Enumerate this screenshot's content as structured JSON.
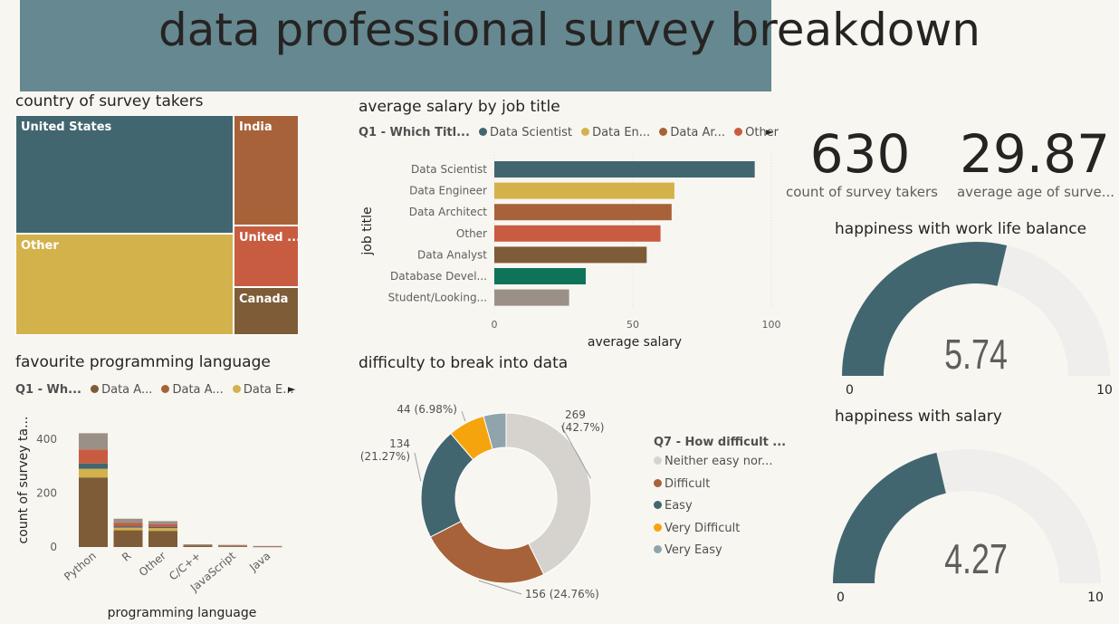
{
  "header": {
    "title": "data professional survey breakdown"
  },
  "treemap": {
    "title": "country of survey takers",
    "cells": [
      {
        "label": "United States",
        "color": "#426670"
      },
      {
        "label": "Other",
        "color": "#d3b24c"
      },
      {
        "label": "India",
        "color": "#a86239"
      },
      {
        "label": "United ...",
        "color": "#c75c41"
      },
      {
        "label": "Canada",
        "color": "#7e5c38"
      }
    ]
  },
  "salary_chart": {
    "title": "average salary by job title",
    "legend_title": "Q1 - Which Titl...",
    "legend": [
      {
        "label": "Data Scientist",
        "color": "#426670"
      },
      {
        "label": "Data En...",
        "color": "#d3b24c"
      },
      {
        "label": "Data Ar...",
        "color": "#a86239"
      },
      {
        "label": "Other",
        "color": "#c75c41"
      }
    ],
    "more_arrow": "►"
  },
  "lang_chart": {
    "title": "favourite programming language",
    "legend_title": "Q1 - Wh...",
    "legend": [
      {
        "label": "Data A...",
        "color": "#7e5c38"
      },
      {
        "label": "Data A...",
        "color": "#a86239"
      },
      {
        "label": "Data E...",
        "color": "#d3b24c"
      }
    ],
    "more_arrow": "►"
  },
  "donut_chart": {
    "title": "difficulty to break into data",
    "legend_title": "Q7 - How difficult ...",
    "legend": [
      {
        "label": "Neither easy nor...",
        "color": "#d6d3ce"
      },
      {
        "label": "Difficult",
        "color": "#a86239"
      },
      {
        "label": "Easy",
        "color": "#426670"
      },
      {
        "label": "Very Difficult",
        "color": "#f6a40e"
      },
      {
        "label": "Very Easy",
        "color": "#8fa4ab"
      }
    ]
  },
  "cards": {
    "count_value": "630",
    "count_label": "count of survey takers",
    "age_value": "29.87",
    "age_label": "average age of surve..."
  },
  "gauges": {
    "work_life": {
      "title": "happiness with work life balance",
      "value_text": "5.74",
      "min_label": "0",
      "max_label": "10"
    },
    "salary": {
      "title": "happiness with salary",
      "value_text": "4.27",
      "min_label": "0",
      "max_label": "10"
    }
  },
  "chart_data": [
    {
      "type": "treemap",
      "title": "country of survey takers",
      "categories": [
        "United States",
        "Other",
        "India",
        "United ...",
        "Canada"
      ]
    },
    {
      "type": "bar",
      "orientation": "horizontal",
      "title": "average salary by job title",
      "xlabel": "average salary",
      "ylabel": "job title",
      "categories": [
        "Data Scientist",
        "Data Engineer",
        "Data Architect",
        "Other",
        "Data Analyst",
        "Database Devel...",
        "Student/Looking..."
      ],
      "values": [
        94,
        65,
        64,
        60,
        55,
        33,
        27
      ],
      "colors": [
        "#426670",
        "#d3b24c",
        "#a86239",
        "#c75c41",
        "#7e5c38",
        "#0e7359",
        "#9b9088"
      ],
      "xlim": [
        0,
        100
      ],
      "xticks": [
        "0",
        "50",
        "100"
      ],
      "grid": true
    },
    {
      "type": "bar",
      "stacked": true,
      "title": "favourite programming language",
      "xlabel": "programming language",
      "ylabel": "count of survey ta...",
      "categories": [
        "Python",
        "R",
        "Other",
        "C/C++",
        "JavaScript",
        "Java"
      ],
      "ylim": [
        0,
        440
      ],
      "yticks": [
        "0",
        "200",
        "400"
      ],
      "series": [
        {
          "color": "#7e5c38",
          "values": [
            258,
            62,
            60,
            6,
            3,
            2
          ]
        },
        {
          "color": "#d3b24c",
          "values": [
            32,
            10,
            10,
            1,
            1,
            0
          ]
        },
        {
          "color": "#426670",
          "values": [
            20,
            5,
            4,
            1,
            1,
            0
          ]
        },
        {
          "color": "#c75c41",
          "values": [
            52,
            12,
            10,
            1,
            1,
            1
          ]
        },
        {
          "color": "#9b9088",
          "values": [
            60,
            16,
            12,
            1,
            2,
            1
          ]
        }
      ]
    },
    {
      "type": "pie",
      "donut": true,
      "title": "difficulty to break into data",
      "categories": [
        "Neither easy nor...",
        "Difficult",
        "Easy",
        "Very Difficult",
        "Very Easy"
      ],
      "values": [
        269,
        156,
        134,
        44,
        27
      ],
      "colors": [
        "#d6d3ce",
        "#a86239",
        "#426670",
        "#f6a40e",
        "#8fa4ab"
      ],
      "data_labels": [
        "269 (42.7%)",
        "156 (24.76%)",
        "134 (21.27%)",
        "44 (6.98%)",
        ""
      ]
    },
    {
      "type": "gauge",
      "title": "happiness with work life balance",
      "value": 5.74,
      "min": 0,
      "max": 10,
      "fill_color": "#426670",
      "track_color": "#f0eeec"
    },
    {
      "type": "gauge",
      "title": "happiness with salary",
      "value": 4.27,
      "min": 0,
      "max": 10,
      "fill_color": "#426670",
      "track_color": "#f0eeec"
    }
  ]
}
